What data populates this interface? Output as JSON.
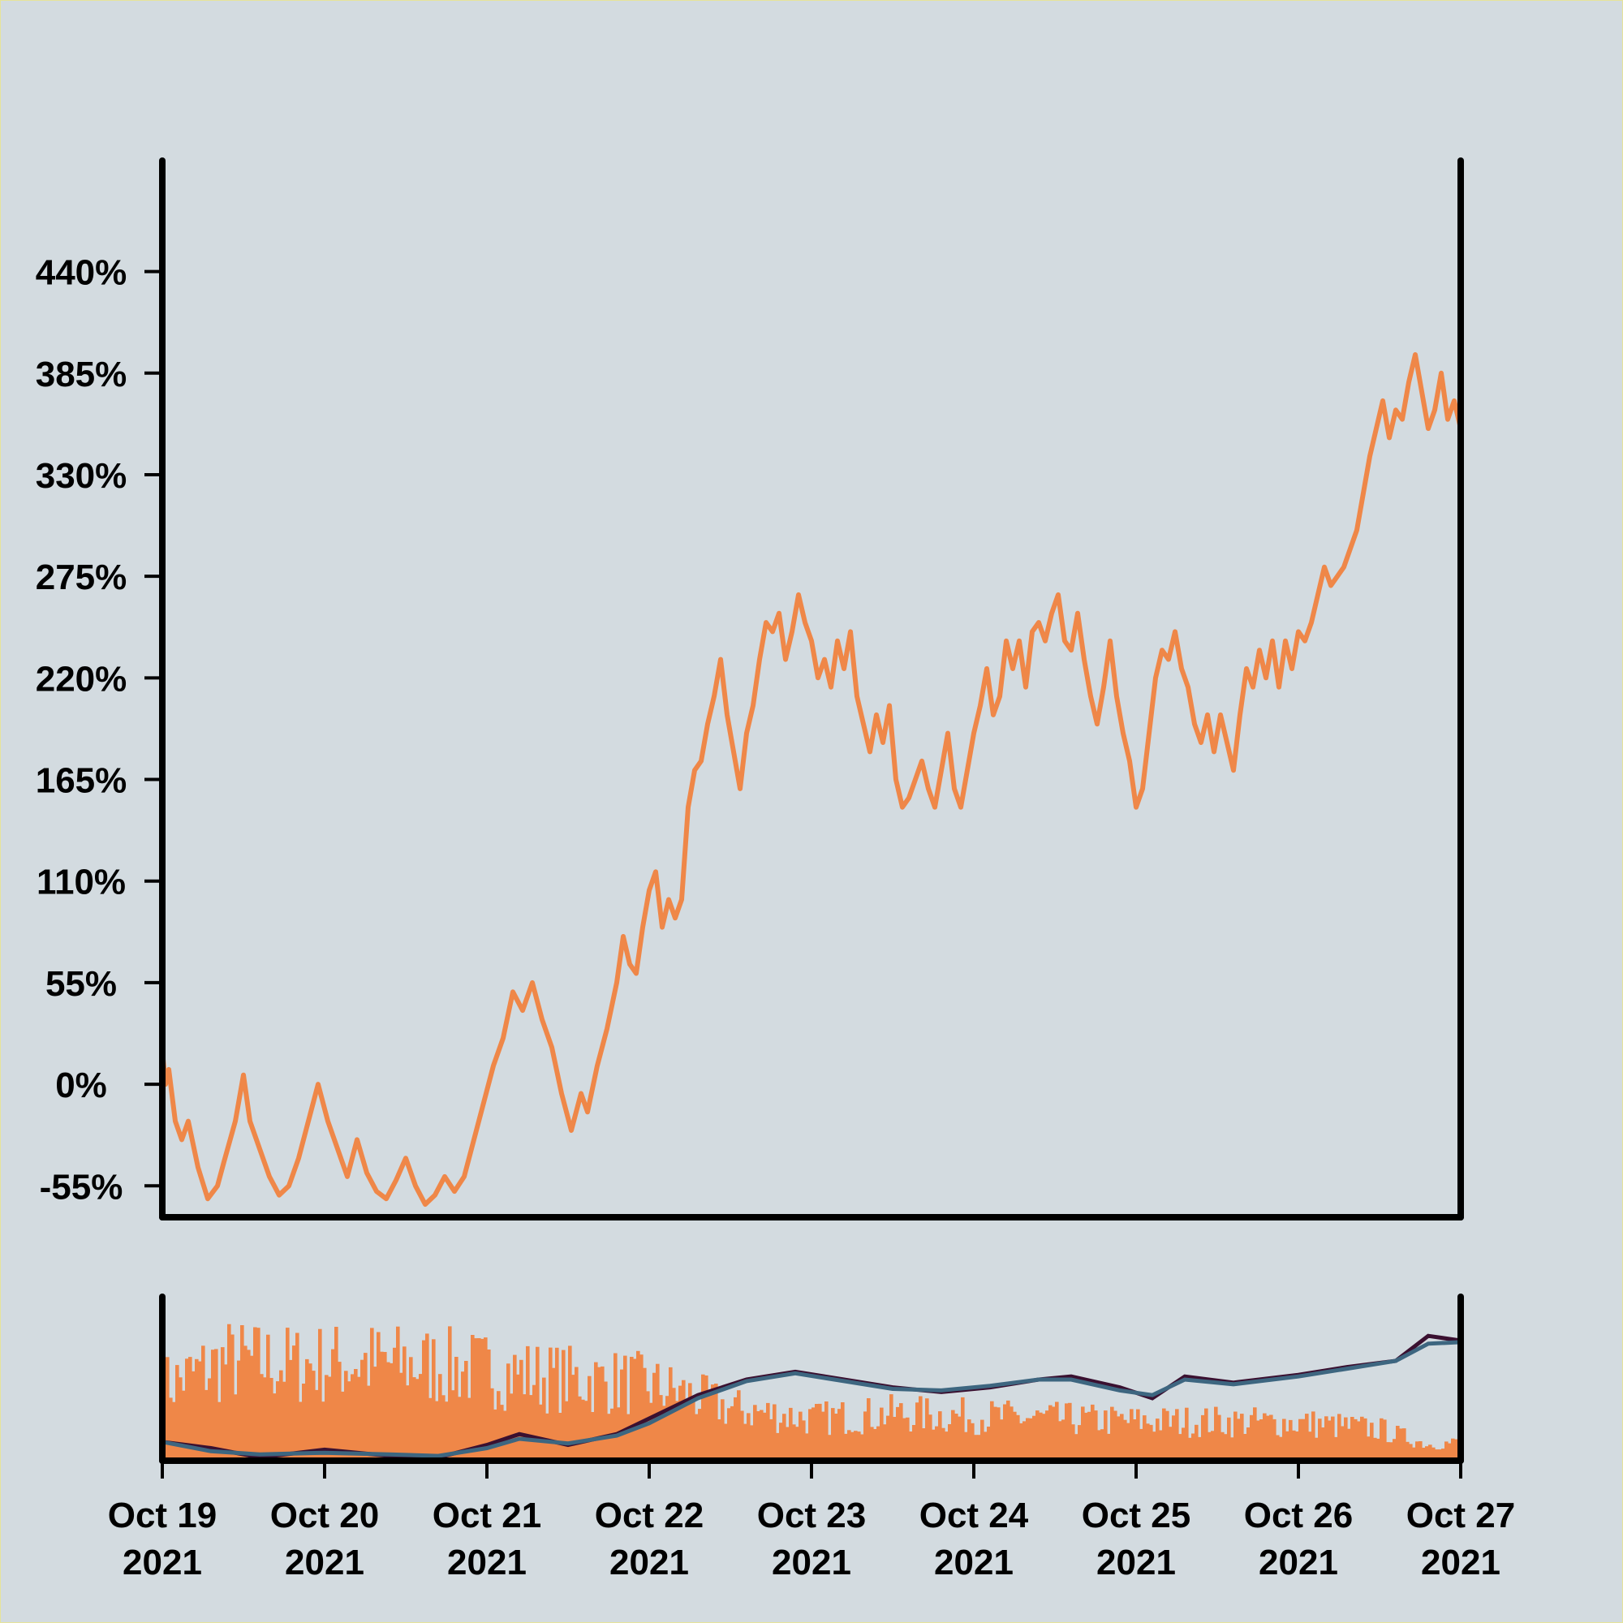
{
  "colors": {
    "background": "#d3dbe0",
    "price_line": "#ef8748",
    "volume_bars": "#ef8748",
    "ma_fast": "#3a1030",
    "ma_slow": "#3d6680",
    "axis": "#000000"
  },
  "chart_data": [
    {
      "type": "line",
      "panel": "price",
      "title": "",
      "xlabel": "",
      "ylabel": "",
      "ylim": [
        -72,
        500
      ],
      "y_ticks": [
        {
          "value": 440,
          "label": "440%"
        },
        {
          "value": 385,
          "label": "385%"
        },
        {
          "value": 330,
          "label": "330%"
        },
        {
          "value": 275,
          "label": "275%"
        },
        {
          "value": 220,
          "label": "220%"
        },
        {
          "value": 165,
          "label": "165%"
        },
        {
          "value": 110,
          "label": "110%"
        },
        {
          "value": 55,
          "label": "55%"
        },
        {
          "value": 0,
          "label": "0%"
        },
        {
          "value": -55,
          "label": "-55%"
        }
      ],
      "x_start": "2021-10-19",
      "x_end": "2021-10-27",
      "grid": false,
      "series": [
        {
          "values": [
            [
              0.0,
              18
            ],
            [
              0.02,
              0
            ],
            [
              0.04,
              8
            ],
            [
              0.08,
              -20
            ],
            [
              0.12,
              -30
            ],
            [
              0.16,
              -20
            ],
            [
              0.22,
              -45
            ],
            [
              0.28,
              -62
            ],
            [
              0.34,
              -55
            ],
            [
              0.38,
              -42
            ],
            [
              0.45,
              -20
            ],
            [
              0.5,
              5
            ],
            [
              0.54,
              -20
            ],
            [
              0.6,
              -35
            ],
            [
              0.66,
              -50
            ],
            [
              0.72,
              -60
            ],
            [
              0.78,
              -55
            ],
            [
              0.84,
              -40
            ],
            [
              0.9,
              -20
            ],
            [
              0.96,
              0
            ],
            [
              1.02,
              -20
            ],
            [
              1.08,
              -35
            ],
            [
              1.14,
              -50
            ],
            [
              1.2,
              -30
            ],
            [
              1.26,
              -48
            ],
            [
              1.32,
              -58
            ],
            [
              1.38,
              -62
            ],
            [
              1.44,
              -52
            ],
            [
              1.5,
              -40
            ],
            [
              1.56,
              -55
            ],
            [
              1.62,
              -65
            ],
            [
              1.68,
              -60
            ],
            [
              1.74,
              -50
            ],
            [
              1.8,
              -58
            ],
            [
              1.86,
              -50
            ],
            [
              1.92,
              -30
            ],
            [
              1.98,
              -10
            ],
            [
              2.04,
              10
            ],
            [
              2.1,
              25
            ],
            [
              2.16,
              50
            ],
            [
              2.22,
              40
            ],
            [
              2.28,
              55
            ],
            [
              2.34,
              35
            ],
            [
              2.4,
              20
            ],
            [
              2.46,
              -5
            ],
            [
              2.52,
              -25
            ],
            [
              2.58,
              -5
            ],
            [
              2.62,
              -15
            ],
            [
              2.68,
              10
            ],
            [
              2.74,
              30
            ],
            [
              2.8,
              55
            ],
            [
              2.84,
              80
            ],
            [
              2.88,
              65
            ],
            [
              2.92,
              60
            ],
            [
              2.96,
              85
            ],
            [
              3.0,
              105
            ],
            [
              3.04,
              115
            ],
            [
              3.08,
              85
            ],
            [
              3.12,
              100
            ],
            [
              3.16,
              90
            ],
            [
              3.2,
              100
            ],
            [
              3.24,
              150
            ],
            [
              3.28,
              170
            ],
            [
              3.32,
              175
            ],
            [
              3.36,
              195
            ],
            [
              3.4,
              210
            ],
            [
              3.44,
              230
            ],
            [
              3.48,
              200
            ],
            [
              3.52,
              180
            ],
            [
              3.56,
              160
            ],
            [
              3.6,
              190
            ],
            [
              3.64,
              205
            ],
            [
              3.68,
              230
            ],
            [
              3.72,
              250
            ],
            [
              3.76,
              245
            ],
            [
              3.8,
              255
            ],
            [
              3.84,
              230
            ],
            [
              3.88,
              245
            ],
            [
              3.92,
              265
            ],
            [
              3.96,
              250
            ],
            [
              4.0,
              240
            ],
            [
              4.04,
              220
            ],
            [
              4.08,
              230
            ],
            [
              4.12,
              215
            ],
            [
              4.16,
              240
            ],
            [
              4.2,
              225
            ],
            [
              4.24,
              245
            ],
            [
              4.28,
              210
            ],
            [
              4.32,
              195
            ],
            [
              4.36,
              180
            ],
            [
              4.4,
              200
            ],
            [
              4.44,
              185
            ],
            [
              4.48,
              205
            ],
            [
              4.52,
              165
            ],
            [
              4.56,
              150
            ],
            [
              4.6,
              155
            ],
            [
              4.64,
              165
            ],
            [
              4.68,
              175
            ],
            [
              4.72,
              160
            ],
            [
              4.76,
              150
            ],
            [
              4.8,
              170
            ],
            [
              4.84,
              190
            ],
            [
              4.88,
              160
            ],
            [
              4.92,
              150
            ],
            [
              4.96,
              170
            ],
            [
              5.0,
              190
            ],
            [
              5.04,
              205
            ],
            [
              5.08,
              225
            ],
            [
              5.12,
              200
            ],
            [
              5.16,
              210
            ],
            [
              5.2,
              240
            ],
            [
              5.24,
              225
            ],
            [
              5.28,
              240
            ],
            [
              5.32,
              215
            ],
            [
              5.36,
              245
            ],
            [
              5.4,
              250
            ],
            [
              5.44,
              240
            ],
            [
              5.48,
              255
            ],
            [
              5.52,
              265
            ],
            [
              5.56,
              240
            ],
            [
              5.6,
              235
            ],
            [
              5.64,
              255
            ],
            [
              5.68,
              230
            ],
            [
              5.72,
              210
            ],
            [
              5.76,
              195
            ],
            [
              5.8,
              215
            ],
            [
              5.84,
              240
            ],
            [
              5.88,
              210
            ],
            [
              5.92,
              190
            ],
            [
              5.96,
              175
            ],
            [
              6.0,
              150
            ],
            [
              6.04,
              160
            ],
            [
              6.08,
              190
            ],
            [
              6.12,
              220
            ],
            [
              6.16,
              235
            ],
            [
              6.2,
              230
            ],
            [
              6.24,
              245
            ],
            [
              6.28,
              225
            ],
            [
              6.32,
              215
            ],
            [
              6.36,
              195
            ],
            [
              6.4,
              185
            ],
            [
              6.44,
              200
            ],
            [
              6.48,
              180
            ],
            [
              6.52,
              200
            ],
            [
              6.56,
              185
            ],
            [
              6.6,
              170
            ],
            [
              6.64,
              200
            ],
            [
              6.68,
              225
            ],
            [
              6.72,
              215
            ],
            [
              6.76,
              235
            ],
            [
              6.8,
              220
            ],
            [
              6.84,
              240
            ],
            [
              6.88,
              215
            ],
            [
              6.92,
              240
            ],
            [
              6.96,
              225
            ],
            [
              7.0,
              245
            ],
            [
              7.04,
              240
            ],
            [
              7.08,
              250
            ],
            [
              7.12,
              265
            ],
            [
              7.16,
              280
            ],
            [
              7.2,
              270
            ],
            [
              7.24,
              275
            ],
            [
              7.28,
              280
            ],
            [
              7.32,
              290
            ],
            [
              7.36,
              300
            ],
            [
              7.4,
              320
            ],
            [
              7.44,
              340
            ],
            [
              7.48,
              355
            ],
            [
              7.52,
              370
            ],
            [
              7.56,
              350
            ],
            [
              7.6,
              365
            ],
            [
              7.64,
              360
            ],
            [
              7.68,
              380
            ],
            [
              7.72,
              395
            ],
            [
              7.76,
              375
            ],
            [
              7.8,
              355
            ],
            [
              7.84,
              365
            ],
            [
              7.88,
              385
            ],
            [
              7.92,
              360
            ],
            [
              7.96,
              370
            ],
            [
              8.0,
              355
            ]
          ]
        }
      ]
    },
    {
      "type": "bar",
      "panel": "volume",
      "title": "",
      "xlabel": "",
      "ylabel": "",
      "x_ticks": [
        {
          "line1": "Oct 19",
          "line2": "2021"
        },
        {
          "line1": "Oct 20",
          "line2": "2021"
        },
        {
          "line1": "Oct 21",
          "line2": "2021"
        },
        {
          "line1": "Oct 22",
          "line2": "2021"
        },
        {
          "line1": "Oct 23",
          "line2": "2021"
        },
        {
          "line1": "Oct 24",
          "line2": "2021"
        },
        {
          "line1": "Oct 25",
          "line2": "2021"
        },
        {
          "line1": "Oct 26",
          "line2": "2021"
        },
        {
          "line1": "Oct 27",
          "line2": "2021"
        }
      ],
      "volume_envelope": [
        [
          0.0,
          0.55
        ],
        [
          0.4,
          0.75
        ],
        [
          0.8,
          0.72
        ],
        [
          1.2,
          0.74
        ],
        [
          1.6,
          0.72
        ],
        [
          2.0,
          0.68
        ],
        [
          2.4,
          0.62
        ],
        [
          2.6,
          0.6
        ],
        [
          2.9,
          0.58
        ],
        [
          3.2,
          0.5
        ],
        [
          3.5,
          0.38
        ],
        [
          4.0,
          0.3
        ],
        [
          4.5,
          0.34
        ],
        [
          5.0,
          0.32
        ],
        [
          5.5,
          0.3
        ],
        [
          6.0,
          0.28
        ],
        [
          6.5,
          0.28
        ],
        [
          7.0,
          0.27
        ],
        [
          7.5,
          0.22
        ],
        [
          7.8,
          0.1
        ],
        [
          8.0,
          0.12
        ]
      ],
      "moving_average_fast": [
        [
          0.0,
          0.1
        ],
        [
          0.3,
          0.06
        ],
        [
          0.6,
          0.0
        ],
        [
          1.0,
          0.05
        ],
        [
          1.4,
          0.01
        ],
        [
          1.7,
          0.0
        ],
        [
          2.0,
          0.08
        ],
        [
          2.2,
          0.15
        ],
        [
          2.5,
          0.08
        ],
        [
          2.8,
          0.15
        ],
        [
          3.0,
          0.25
        ],
        [
          3.3,
          0.4
        ],
        [
          3.6,
          0.5
        ],
        [
          3.9,
          0.55
        ],
        [
          4.2,
          0.5
        ],
        [
          4.5,
          0.45
        ],
        [
          4.8,
          0.42
        ],
        [
          5.1,
          0.45
        ],
        [
          5.4,
          0.5
        ],
        [
          5.6,
          0.52
        ],
        [
          5.9,
          0.45
        ],
        [
          6.1,
          0.38
        ],
        [
          6.3,
          0.52
        ],
        [
          6.6,
          0.48
        ],
        [
          7.0,
          0.53
        ],
        [
          7.3,
          0.58
        ],
        [
          7.6,
          0.62
        ],
        [
          7.8,
          0.78
        ],
        [
          8.0,
          0.75
        ]
      ],
      "moving_average_slow": [
        [
          0.0,
          0.1
        ],
        [
          0.3,
          0.04
        ],
        [
          0.6,
          0.02
        ],
        [
          1.0,
          0.03
        ],
        [
          1.4,
          0.02
        ],
        [
          1.7,
          0.01
        ],
        [
          2.0,
          0.06
        ],
        [
          2.2,
          0.12
        ],
        [
          2.5,
          0.09
        ],
        [
          2.8,
          0.14
        ],
        [
          3.0,
          0.22
        ],
        [
          3.3,
          0.38
        ],
        [
          3.6,
          0.49
        ],
        [
          3.9,
          0.54
        ],
        [
          4.2,
          0.49
        ],
        [
          4.5,
          0.44
        ],
        [
          4.8,
          0.43
        ],
        [
          5.1,
          0.46
        ],
        [
          5.4,
          0.5
        ],
        [
          5.6,
          0.5
        ],
        [
          5.9,
          0.43
        ],
        [
          6.1,
          0.4
        ],
        [
          6.3,
          0.5
        ],
        [
          6.6,
          0.47
        ],
        [
          7.0,
          0.52
        ],
        [
          7.3,
          0.57
        ],
        [
          7.6,
          0.62
        ],
        [
          7.8,
          0.73
        ],
        [
          8.0,
          0.74
        ]
      ]
    }
  ]
}
